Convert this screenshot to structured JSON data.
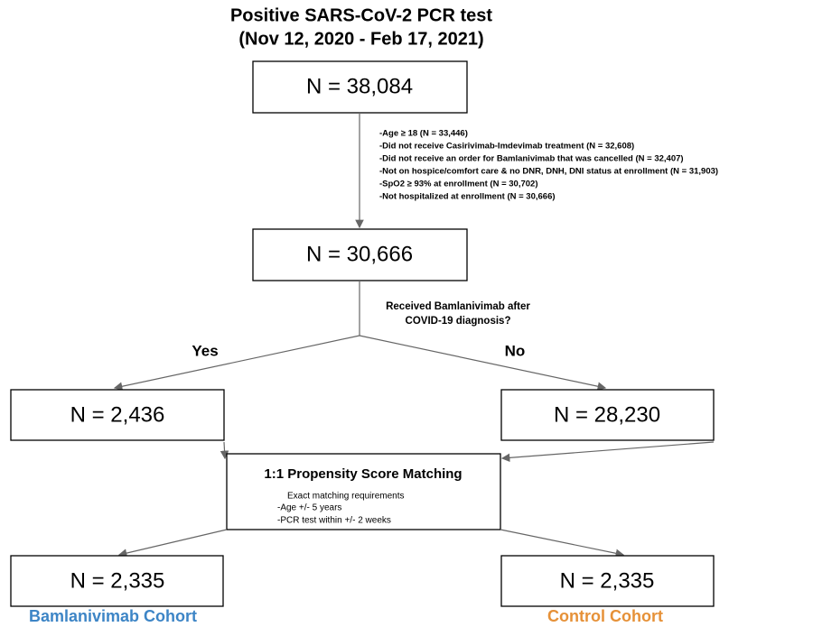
{
  "header": {
    "title_lines": [
      "Positive SARS-CoV-2 PCR test",
      "(Nov 12, 2020 - Feb 17, 2021)"
    ]
  },
  "nodes": [
    {
      "label": "N = 38,084"
    },
    {
      "label": "N = 30,666"
    },
    {
      "label": "N = 2,436"
    },
    {
      "label": "N = 28,230"
    },
    {
      "label": "N = 2,335"
    },
    {
      "label": "N = 2,335"
    }
  ],
  "exclusions": [
    "-Age ≥ 18 (N = 33,446)",
    "-Did not receive Casirivimab-Imdevimab treatment (N = 32,608)",
    "-Did not receive an order for Bamlanivimab that was cancelled (N = 32,407)",
    "-Not on hospice/comfort care & no DNR, DNH, DNI status at enrollment (N = 31,903)",
    "-SpO2 ≥ 93% at enrollment (N = 30,702)",
    "-Not hospitalized at enrollment (N = 30,666)"
  ],
  "question_lines": [
    "Received Bamlanivimab after",
    "COVID-19 diagnosis?"
  ],
  "branches": [
    "Yes",
    "No"
  ],
  "matching": {
    "title": "1:1 Propensity Score Matching",
    "lines": [
      "Exact matching requirements",
      "-Age +/- 5 years",
      "-PCR test within +/- 2 weeks"
    ]
  },
  "cohorts": [
    {
      "label": "Bamlanivimab Cohort",
      "color": "#3d85c6"
    },
    {
      "label": "Control Cohort",
      "color": "#e69138"
    }
  ]
}
